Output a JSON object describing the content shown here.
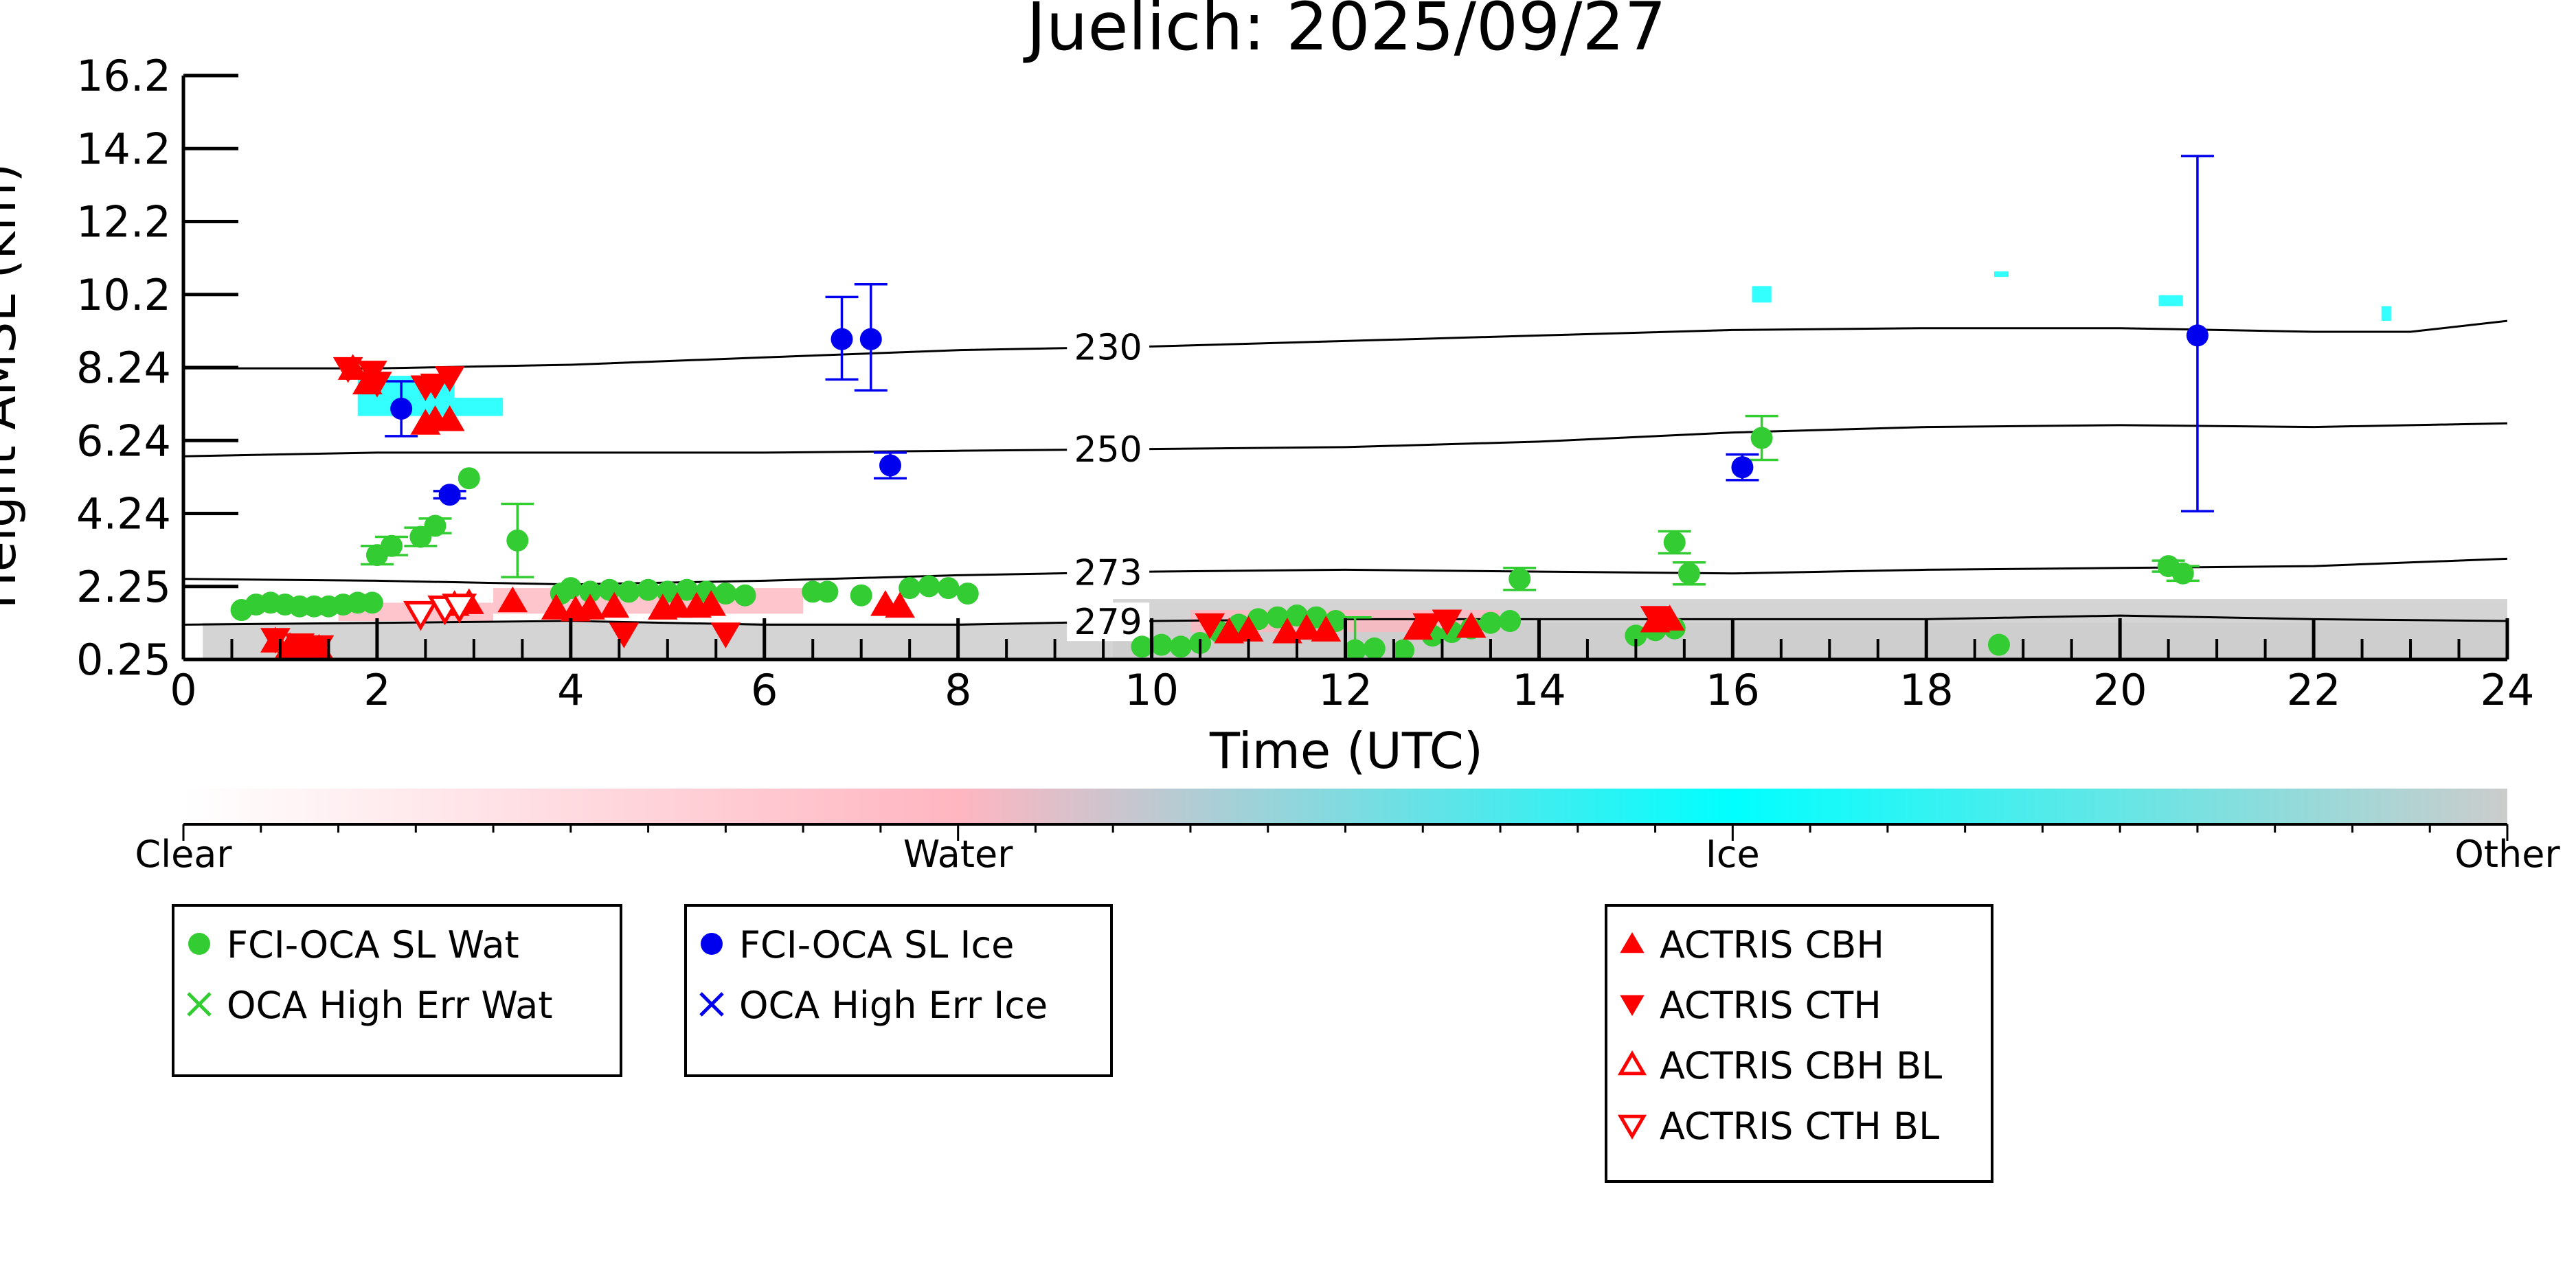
{
  "chart_data": {
    "type": "scatter",
    "title": "Juelich: 2025/09/27",
    "xlabel": "Time (UTC)",
    "ylabel": "Height AMSL (km)",
    "xlim": [
      0,
      24
    ],
    "ylim": [
      0.25,
      16.2
    ],
    "x_ticks": [
      "0",
      "2",
      "4",
      "6",
      "8",
      "10",
      "12",
      "14",
      "16",
      "18",
      "20",
      "22",
      "24"
    ],
    "y_ticks": [
      "0.25",
      "2.25",
      "4.24",
      "6.24",
      "8.24",
      "10.2",
      "12.2",
      "14.2",
      "16.2"
    ],
    "grid": false,
    "colors": {
      "water_marker": "#33cc33",
      "ice_marker": "#0000ee",
      "actris": "#ff0000",
      "water_mask": "#ffb6c1",
      "ice_mask": "#00ffff",
      "other_mask": "#cccccc"
    },
    "colorbar": {
      "labels": [
        "Clear",
        "Water",
        "Ice",
        "Other"
      ],
      "colors": [
        "#ffffff",
        "#ffb6c1",
        "#00ffff",
        "#cccccc"
      ]
    },
    "contours": [
      {
        "label": "230",
        "label_x": 9.55,
        "x": [
          0,
          2,
          4,
          6,
          8,
          10,
          12,
          14,
          16,
          18,
          20,
          22,
          23,
          24
        ],
        "y": [
          8.2,
          8.2,
          8.3,
          8.5,
          8.7,
          8.8,
          8.95,
          9.1,
          9.25,
          9.3,
          9.3,
          9.2,
          9.2,
          9.5
        ]
      },
      {
        "label": "250",
        "label_x": 9.55,
        "x": [
          0,
          2,
          4,
          6,
          8,
          10,
          12,
          14,
          16,
          18,
          20,
          22,
          24
        ],
        "y": [
          5.8,
          5.9,
          5.9,
          5.9,
          5.95,
          6.0,
          6.05,
          6.2,
          6.45,
          6.6,
          6.65,
          6.6,
          6.7
        ]
      },
      {
        "label": "273",
        "label_x": 9.55,
        "x": [
          0,
          2,
          4,
          6,
          8,
          10,
          12,
          14,
          16,
          18,
          20,
          22,
          24
        ],
        "y": [
          2.45,
          2.4,
          2.3,
          2.4,
          2.55,
          2.65,
          2.7,
          2.65,
          2.6,
          2.7,
          2.75,
          2.8,
          3.0
        ]
      },
      {
        "label": "279",
        "label_x": 9.55,
        "x": [
          0,
          2,
          4,
          6,
          8,
          10,
          12,
          14,
          16,
          18,
          20,
          22,
          24
        ],
        "y": [
          1.2,
          1.25,
          1.3,
          1.2,
          1.2,
          1.3,
          1.35,
          1.35,
          1.35,
          1.35,
          1.45,
          1.35,
          1.3
        ]
      }
    ],
    "mask_regions": [
      {
        "class": "Other",
        "x0": 0.2,
        "x1": 24,
        "y0": 0.25,
        "y1": 1.25
      },
      {
        "class": "Other",
        "x0": 9.6,
        "x1": 24,
        "y0": 0.25,
        "y1": 1.9
      },
      {
        "class": "Water",
        "x0": 1.6,
        "x1": 3.2,
        "y0": 1.3,
        "y1": 1.8
      },
      {
        "class": "Water",
        "x0": 3.2,
        "x1": 6.4,
        "y0": 1.5,
        "y1": 2.2
      },
      {
        "class": "Water",
        "x0": 10.4,
        "x1": 13.6,
        "y0": 1.0,
        "y1": 1.6
      },
      {
        "class": "Ice",
        "x0": 1.8,
        "x1": 2.8,
        "y0": 6.9,
        "y1": 8.0
      },
      {
        "class": "Ice",
        "x0": 2.8,
        "x1": 3.3,
        "y0": 6.9,
        "y1": 7.4
      },
      {
        "class": "Ice",
        "x0": 16.2,
        "x1": 16.4,
        "y0": 10.0,
        "y1": 10.45
      },
      {
        "class": "Ice",
        "x0": 18.7,
        "x1": 18.85,
        "y0": 10.7,
        "y1": 10.85
      },
      {
        "class": "Ice",
        "x0": 20.4,
        "x1": 20.65,
        "y0": 9.9,
        "y1": 10.2
      },
      {
        "class": "Ice",
        "x0": 22.7,
        "x1": 22.8,
        "y0": 9.5,
        "y1": 9.9
      }
    ],
    "series": [
      {
        "name": "FCI-OCA SL Wat",
        "marker": "circle",
        "color": "#33cc33",
        "points": [
          {
            "x": 0.6,
            "y": 1.6
          },
          {
            "x": 0.75,
            "y": 1.75
          },
          {
            "x": 0.9,
            "y": 1.8
          },
          {
            "x": 1.05,
            "y": 1.75
          },
          {
            "x": 1.2,
            "y": 1.7
          },
          {
            "x": 1.35,
            "y": 1.7
          },
          {
            "x": 1.5,
            "y": 1.7
          },
          {
            "x": 1.65,
            "y": 1.75
          },
          {
            "x": 1.8,
            "y": 1.8
          },
          {
            "x": 1.95,
            "y": 1.8
          },
          {
            "x": 2.0,
            "y": 3.1,
            "err": 0.25
          },
          {
            "x": 2.15,
            "y": 3.35,
            "err": 0.25
          },
          {
            "x": 2.45,
            "y": 3.6,
            "err": 0.25
          },
          {
            "x": 2.6,
            "y": 3.9,
            "err": 0.2
          },
          {
            "x": 2.95,
            "y": 5.2
          },
          {
            "x": 3.45,
            "y": 3.5,
            "err": 1.0
          },
          {
            "x": 3.9,
            "y": 2.05
          },
          {
            "x": 4.0,
            "y": 2.2
          },
          {
            "x": 4.2,
            "y": 2.1
          },
          {
            "x": 4.4,
            "y": 2.15
          },
          {
            "x": 4.6,
            "y": 2.1
          },
          {
            "x": 4.8,
            "y": 2.15
          },
          {
            "x": 5.0,
            "y": 2.1
          },
          {
            "x": 5.2,
            "y": 2.15
          },
          {
            "x": 5.4,
            "y": 2.1
          },
          {
            "x": 5.6,
            "y": 2.05
          },
          {
            "x": 5.8,
            "y": 2.0
          },
          {
            "x": 6.5,
            "y": 2.1
          },
          {
            "x": 6.65,
            "y": 2.1
          },
          {
            "x": 7.0,
            "y": 2.0
          },
          {
            "x": 7.5,
            "y": 2.2
          },
          {
            "x": 7.7,
            "y": 2.25
          },
          {
            "x": 7.9,
            "y": 2.2
          },
          {
            "x": 8.1,
            "y": 2.05
          },
          {
            "x": 9.9,
            "y": 0.6
          },
          {
            "x": 10.1,
            "y": 0.65
          },
          {
            "x": 10.3,
            "y": 0.6
          },
          {
            "x": 10.5,
            "y": 0.7
          },
          {
            "x": 10.7,
            "y": 1.0
          },
          {
            "x": 10.9,
            "y": 1.2
          },
          {
            "x": 11.1,
            "y": 1.35
          },
          {
            "x": 11.3,
            "y": 1.4
          },
          {
            "x": 11.5,
            "y": 1.45
          },
          {
            "x": 11.7,
            "y": 1.4
          },
          {
            "x": 11.9,
            "y": 1.3
          },
          {
            "x": 12.1,
            "y": 0.5,
            "err": 0.9
          },
          {
            "x": 12.3,
            "y": 0.55
          },
          {
            "x": 12.6,
            "y": 0.5
          },
          {
            "x": 12.9,
            "y": 0.9
          },
          {
            "x": 13.1,
            "y": 1.0
          },
          {
            "x": 13.3,
            "y": 1.1
          },
          {
            "x": 13.5,
            "y": 1.25
          },
          {
            "x": 13.7,
            "y": 1.3
          },
          {
            "x": 13.8,
            "y": 2.45,
            "err": 0.3
          },
          {
            "x": 15.0,
            "y": 0.9
          },
          {
            "x": 15.2,
            "y": 1.05
          },
          {
            "x": 15.4,
            "y": 1.1
          },
          {
            "x": 15.4,
            "y": 3.45,
            "err": 0.3
          },
          {
            "x": 15.55,
            "y": 2.6,
            "err": 0.3
          },
          {
            "x": 16.3,
            "y": 6.3,
            "err": 0.6
          },
          {
            "x": 18.75,
            "y": 0.65
          },
          {
            "x": 20.5,
            "y": 2.8,
            "err": 0.15
          },
          {
            "x": 20.65,
            "y": 2.6,
            "err": 0.2
          }
        ]
      },
      {
        "name": "OCA High Err Wat",
        "marker": "x",
        "color": "#33cc33",
        "points": []
      },
      {
        "name": "FCI-OCA SL Ice",
        "marker": "circle",
        "color": "#0000ee",
        "points": [
          {
            "x": 2.25,
            "y": 7.1,
            "errlo": 0.75,
            "errhi": 0.75
          },
          {
            "x": 2.75,
            "y": 4.75,
            "errlo": 0.1,
            "errhi": 0.1
          },
          {
            "x": 6.8,
            "y": 9.0,
            "errlo": 1.1,
            "errhi": 1.15
          },
          {
            "x": 7.1,
            "y": 9.0,
            "errlo": 1.4,
            "errhi": 1.5
          },
          {
            "x": 7.3,
            "y": 5.55,
            "errlo": 0.35,
            "errhi": 0.35
          },
          {
            "x": 16.1,
            "y": 5.5,
            "errlo": 0.35,
            "errhi": 0.35
          },
          {
            "x": 20.8,
            "y": 9.1,
            "errlo": 4.8,
            "errhi": 4.9
          }
        ]
      },
      {
        "name": "OCA High Err Ice",
        "marker": "x",
        "color": "#0000ee",
        "points": []
      },
      {
        "name": "ACTRIS CBH",
        "marker": "triangle-up",
        "color": "#ff0000",
        "points": [
          {
            "x": 0.95,
            "y": 0.75
          },
          {
            "x": 1.1,
            "y": 0.6
          },
          {
            "x": 1.25,
            "y": 0.55
          },
          {
            "x": 1.4,
            "y": 0.55
          },
          {
            "x": 1.75,
            "y": 8.2
          },
          {
            "x": 1.9,
            "y": 7.8
          },
          {
            "x": 2.5,
            "y": 6.7
          },
          {
            "x": 2.6,
            "y": 6.8
          },
          {
            "x": 2.75,
            "y": 6.8
          },
          {
            "x": 2.8,
            "y": 1.75
          },
          {
            "x": 2.95,
            "y": 1.8
          },
          {
            "x": 3.4,
            "y": 1.85
          },
          {
            "x": 3.85,
            "y": 1.65
          },
          {
            "x": 4.05,
            "y": 1.6
          },
          {
            "x": 4.2,
            "y": 1.65
          },
          {
            "x": 4.45,
            "y": 1.7
          },
          {
            "x": 4.95,
            "y": 1.65
          },
          {
            "x": 5.1,
            "y": 1.7
          },
          {
            "x": 5.3,
            "y": 1.7
          },
          {
            "x": 5.45,
            "y": 1.75
          },
          {
            "x": 7.25,
            "y": 1.75
          },
          {
            "x": 7.4,
            "y": 1.7
          },
          {
            "x": 10.8,
            "y": 1.0
          },
          {
            "x": 11.0,
            "y": 1.05
          },
          {
            "x": 11.4,
            "y": 1.0
          },
          {
            "x": 11.6,
            "y": 1.1
          },
          {
            "x": 11.8,
            "y": 1.05
          },
          {
            "x": 12.75,
            "y": 1.1
          },
          {
            "x": 13.3,
            "y": 1.15
          },
          {
            "x": 15.2,
            "y": 1.3
          },
          {
            "x": 15.35,
            "y": 1.35
          }
        ]
      },
      {
        "name": "ACTRIS CTH",
        "marker": "triangle-down",
        "color": "#ff0000",
        "points": [
          {
            "x": 0.95,
            "y": 0.8
          },
          {
            "x": 1.2,
            "y": 0.65
          },
          {
            "x": 1.4,
            "y": 0.6
          },
          {
            "x": 1.7,
            "y": 8.2
          },
          {
            "x": 1.95,
            "y": 8.1
          },
          {
            "x": 2.0,
            "y": 7.8
          },
          {
            "x": 2.5,
            "y": 7.7
          },
          {
            "x": 2.6,
            "y": 7.75
          },
          {
            "x": 2.75,
            "y": 7.95
          },
          {
            "x": 4.55,
            "y": 0.95
          },
          {
            "x": 5.6,
            "y": 0.95
          },
          {
            "x": 10.6,
            "y": 1.2
          },
          {
            "x": 12.85,
            "y": 1.2
          },
          {
            "x": 13.05,
            "y": 1.3
          },
          {
            "x": 15.2,
            "y": 1.4
          }
        ]
      },
      {
        "name": "ACTRIS CBH BL",
        "marker": "triangle-up-open",
        "color": "#ff0000",
        "points": []
      },
      {
        "name": "ACTRIS CTH BL",
        "marker": "triangle-down-open",
        "color": "#ff0000",
        "points": [
          {
            "x": 2.45,
            "y": 1.5
          },
          {
            "x": 2.7,
            "y": 1.65
          },
          {
            "x": 2.85,
            "y": 1.7
          }
        ]
      }
    ],
    "legends": [
      {
        "id": "water",
        "entries": [
          "FCI-OCA SL Wat",
          "OCA High Err Wat"
        ]
      },
      {
        "id": "ice",
        "entries": [
          "FCI-OCA SL Ice",
          "OCA High Err Ice"
        ]
      },
      {
        "id": "actris",
        "entries": [
          "ACTRIS CBH",
          "ACTRIS CTH",
          "ACTRIS CBH BL",
          "ACTRIS CTH BL"
        ]
      }
    ]
  }
}
